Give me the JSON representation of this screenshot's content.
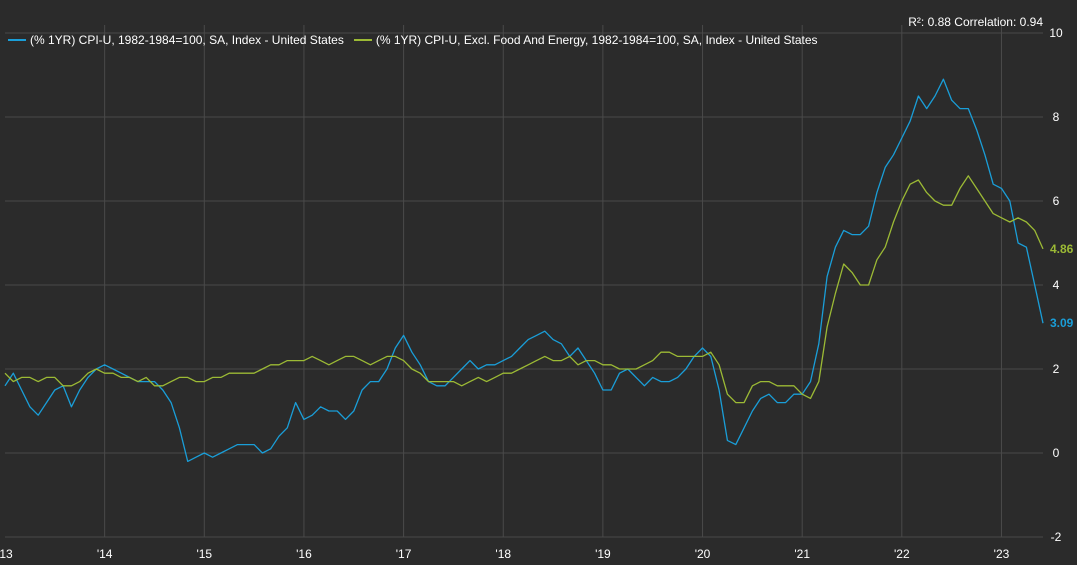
{
  "stats": {
    "r2_label": "R²: 0.88",
    "corr_label": "Correlation: 0.94"
  },
  "chart_data": {
    "type": "line",
    "x_tick_labels": [
      "13",
      "'14",
      "'15",
      "'16",
      "'17",
      "'18",
      "'19",
      "'20",
      "'21",
      "'22",
      "'23"
    ],
    "y_ticks": [
      -2,
      0,
      2,
      4,
      6,
      8,
      10
    ],
    "ylim": [
      -2,
      10
    ],
    "xlim": [
      "2013-01",
      "2023-06"
    ],
    "grid": true,
    "legend_position": "top-left",
    "series": [
      {
        "name": "(% 1YR) CPI-U, 1982-1984=100, SA, Index - United States",
        "color": "#1a9ed8",
        "last_label": "3.09",
        "x": [
          "2013-01",
          "2013-02",
          "2013-03",
          "2013-04",
          "2013-05",
          "2013-06",
          "2013-07",
          "2013-08",
          "2013-09",
          "2013-10",
          "2013-11",
          "2013-12",
          "2014-01",
          "2014-02",
          "2014-03",
          "2014-04",
          "2014-05",
          "2014-06",
          "2014-07",
          "2014-08",
          "2014-09",
          "2014-10",
          "2014-11",
          "2014-12",
          "2015-01",
          "2015-02",
          "2015-03",
          "2015-04",
          "2015-05",
          "2015-06",
          "2015-07",
          "2015-08",
          "2015-09",
          "2015-10",
          "2015-11",
          "2015-12",
          "2016-01",
          "2016-02",
          "2016-03",
          "2016-04",
          "2016-05",
          "2016-06",
          "2016-07",
          "2016-08",
          "2016-09",
          "2016-10",
          "2016-11",
          "2016-12",
          "2017-01",
          "2017-02",
          "2017-03",
          "2017-04",
          "2017-05",
          "2017-06",
          "2017-07",
          "2017-08",
          "2017-09",
          "2017-10",
          "2017-11",
          "2017-12",
          "2018-01",
          "2018-02",
          "2018-03",
          "2018-04",
          "2018-05",
          "2018-06",
          "2018-07",
          "2018-08",
          "2018-09",
          "2018-10",
          "2018-11",
          "2018-12",
          "2019-01",
          "2019-02",
          "2019-03",
          "2019-04",
          "2019-05",
          "2019-06",
          "2019-07",
          "2019-08",
          "2019-09",
          "2019-10",
          "2019-11",
          "2019-12",
          "2020-01",
          "2020-02",
          "2020-03",
          "2020-04",
          "2020-05",
          "2020-06",
          "2020-07",
          "2020-08",
          "2020-09",
          "2020-10",
          "2020-11",
          "2020-12",
          "2021-01",
          "2021-02",
          "2021-03",
          "2021-04",
          "2021-05",
          "2021-06",
          "2021-07",
          "2021-08",
          "2021-09",
          "2021-10",
          "2021-11",
          "2021-12",
          "2022-01",
          "2022-02",
          "2022-03",
          "2022-04",
          "2022-05",
          "2022-06",
          "2022-07",
          "2022-08",
          "2022-09",
          "2022-10",
          "2022-11",
          "2022-12",
          "2023-01",
          "2023-02",
          "2023-03",
          "2023-04",
          "2023-05",
          "2023-06"
        ],
        "values": [
          1.6,
          1.9,
          1.5,
          1.1,
          0.9,
          1.2,
          1.5,
          1.6,
          1.1,
          1.5,
          1.8,
          2.0,
          2.1,
          2.0,
          1.9,
          1.8,
          1.7,
          1.7,
          1.7,
          1.5,
          1.2,
          0.6,
          -0.2,
          -0.1,
          0.0,
          -0.1,
          0.0,
          0.1,
          0.2,
          0.2,
          0.2,
          0.0,
          0.1,
          0.4,
          0.6,
          1.2,
          0.8,
          0.9,
          1.1,
          1.0,
          1.0,
          0.8,
          1.0,
          1.5,
          1.7,
          1.7,
          2.0,
          2.5,
          2.8,
          2.4,
          2.1,
          1.7,
          1.6,
          1.6,
          1.8,
          2.0,
          2.2,
          2.0,
          2.1,
          2.1,
          2.2,
          2.3,
          2.5,
          2.7,
          2.8,
          2.9,
          2.7,
          2.6,
          2.3,
          2.5,
          2.2,
          1.9,
          1.5,
          1.5,
          1.9,
          2.0,
          1.8,
          1.6,
          1.8,
          1.7,
          1.7,
          1.8,
          2.0,
          2.3,
          2.5,
          2.3,
          1.5,
          0.3,
          0.2,
          0.6,
          1.0,
          1.3,
          1.4,
          1.2,
          1.2,
          1.4,
          1.4,
          1.7,
          2.6,
          4.2,
          4.9,
          5.3,
          5.2,
          5.2,
          5.4,
          6.2,
          6.8,
          7.1,
          7.5,
          7.9,
          8.5,
          8.2,
          8.5,
          8.9,
          8.4,
          8.2,
          8.2,
          7.7,
          7.1,
          6.4,
          6.3,
          6.0,
          5.0,
          4.9,
          4.0,
          3.09
        ]
      },
      {
        "name": "(% 1YR) CPI-U, Excl. Food And Energy, 1982-1984=100, SA, Index - United States",
        "color": "#9cba35",
        "last_label": "4.86",
        "x": [
          "2013-01",
          "2013-02",
          "2013-03",
          "2013-04",
          "2013-05",
          "2013-06",
          "2013-07",
          "2013-08",
          "2013-09",
          "2013-10",
          "2013-11",
          "2013-12",
          "2014-01",
          "2014-02",
          "2014-03",
          "2014-04",
          "2014-05",
          "2014-06",
          "2014-07",
          "2014-08",
          "2014-09",
          "2014-10",
          "2014-11",
          "2014-12",
          "2015-01",
          "2015-02",
          "2015-03",
          "2015-04",
          "2015-05",
          "2015-06",
          "2015-07",
          "2015-08",
          "2015-09",
          "2015-10",
          "2015-11",
          "2015-12",
          "2016-01",
          "2016-02",
          "2016-03",
          "2016-04",
          "2016-05",
          "2016-06",
          "2016-07",
          "2016-08",
          "2016-09",
          "2016-10",
          "2016-11",
          "2016-12",
          "2017-01",
          "2017-02",
          "2017-03",
          "2017-04",
          "2017-05",
          "2017-06",
          "2017-07",
          "2017-08",
          "2017-09",
          "2017-10",
          "2017-11",
          "2017-12",
          "2018-01",
          "2018-02",
          "2018-03",
          "2018-04",
          "2018-05",
          "2018-06",
          "2018-07",
          "2018-08",
          "2018-09",
          "2018-10",
          "2018-11",
          "2018-12",
          "2019-01",
          "2019-02",
          "2019-03",
          "2019-04",
          "2019-05",
          "2019-06",
          "2019-07",
          "2019-08",
          "2019-09",
          "2019-10",
          "2019-11",
          "2019-12",
          "2020-01",
          "2020-02",
          "2020-03",
          "2020-04",
          "2020-05",
          "2020-06",
          "2020-07",
          "2020-08",
          "2020-09",
          "2020-10",
          "2020-11",
          "2020-12",
          "2021-01",
          "2021-02",
          "2021-03",
          "2021-04",
          "2021-05",
          "2021-06",
          "2021-07",
          "2021-08",
          "2021-09",
          "2021-10",
          "2021-11",
          "2021-12",
          "2022-01",
          "2022-02",
          "2022-03",
          "2022-04",
          "2022-05",
          "2022-06",
          "2022-07",
          "2022-08",
          "2022-09",
          "2022-10",
          "2022-11",
          "2022-12",
          "2023-01",
          "2023-02",
          "2023-03",
          "2023-04",
          "2023-05",
          "2023-06"
        ],
        "values": [
          1.9,
          1.7,
          1.8,
          1.8,
          1.7,
          1.8,
          1.8,
          1.6,
          1.6,
          1.7,
          1.9,
          2.0,
          1.9,
          1.9,
          1.8,
          1.8,
          1.7,
          1.8,
          1.6,
          1.6,
          1.7,
          1.8,
          1.8,
          1.7,
          1.7,
          1.8,
          1.8,
          1.9,
          1.9,
          1.9,
          1.9,
          2.0,
          2.1,
          2.1,
          2.2,
          2.2,
          2.2,
          2.3,
          2.2,
          2.1,
          2.2,
          2.3,
          2.3,
          2.2,
          2.1,
          2.2,
          2.3,
          2.3,
          2.2,
          2.0,
          1.9,
          1.7,
          1.7,
          1.7,
          1.7,
          1.6,
          1.7,
          1.8,
          1.7,
          1.8,
          1.9,
          1.9,
          2.0,
          2.1,
          2.2,
          2.3,
          2.2,
          2.2,
          2.3,
          2.1,
          2.2,
          2.2,
          2.1,
          2.1,
          2.0,
          2.0,
          2.0,
          2.1,
          2.2,
          2.4,
          2.4,
          2.3,
          2.3,
          2.3,
          2.3,
          2.4,
          2.1,
          1.4,
          1.2,
          1.2,
          1.6,
          1.7,
          1.7,
          1.6,
          1.6,
          1.6,
          1.4,
          1.3,
          1.7,
          3.0,
          3.8,
          4.5,
          4.3,
          4.0,
          4.0,
          4.6,
          4.9,
          5.5,
          6.0,
          6.4,
          6.5,
          6.2,
          6.0,
          5.9,
          5.9,
          6.3,
          6.6,
          6.3,
          6.0,
          5.7,
          5.6,
          5.5,
          5.6,
          5.5,
          5.3,
          4.86
        ]
      }
    ]
  }
}
